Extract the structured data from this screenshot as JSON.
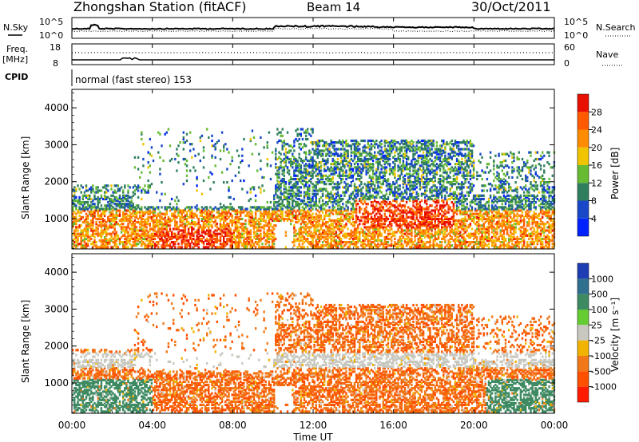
{
  "header": {
    "station": "Zhongshan Station (fitACF)",
    "beam": "Beam 14",
    "date": "30/Oct/2011"
  },
  "noise_panel": {
    "left_label": "N.Sky",
    "right_label": "N.Search",
    "left_ticks": [
      "10^5",
      "10^0"
    ],
    "right_ticks": [
      "10^5",
      "10^0"
    ]
  },
  "freq_panel": {
    "left_label_top": "Freq.",
    "left_label_bottom": "[MHz]",
    "right_label": "Nave",
    "left_ticks": [
      "18",
      "8"
    ],
    "right_ticks": [
      "60",
      "0"
    ]
  },
  "cpid_panel": {
    "label": "CPID",
    "text": "normal (fast stereo) 153"
  },
  "chart_data": [
    {
      "type": "heatmap",
      "title": "Power",
      "xlabel": "",
      "ylabel": "Slant Range [km]",
      "ylim": [
        180,
        4500
      ],
      "yticks": [
        1000,
        2000,
        3000,
        4000
      ],
      "colorbar": {
        "label": "Power [dB]",
        "ticks": [
          "4",
          "8",
          "12",
          "16",
          "20",
          "24",
          "28"
        ],
        "colors": [
          "#0022ff",
          "#1848c8",
          "#2f7f5f",
          "#66bb33",
          "#f0c400",
          "#ff8c00",
          "#ff5a00",
          "#e81000"
        ]
      }
    },
    {
      "type": "heatmap",
      "title": "Velocity",
      "xlabel": "Time UT",
      "ylabel": "Slant Range [km]",
      "ylim": [
        180,
        4500
      ],
      "yticks": [
        1000,
        2000,
        3000,
        4000
      ],
      "xticks": [
        "00:00",
        "04:00",
        "08:00",
        "12:00",
        "16:00",
        "20:00",
        "00:00"
      ],
      "colorbar": {
        "label": "Velocity [m s⁻¹]",
        "ticks": [
          "1000",
          "500",
          "100",
          "25",
          "-25",
          "-100",
          "-500",
          "-1000"
        ],
        "colors": [
          "#1e3cb4",
          "#2f6f8f",
          "#3e8a63",
          "#66cc33",
          "#c8c8c0",
          "#f0b400",
          "#f07818",
          "#ff5000",
          "#ff1a00"
        ]
      }
    }
  ]
}
